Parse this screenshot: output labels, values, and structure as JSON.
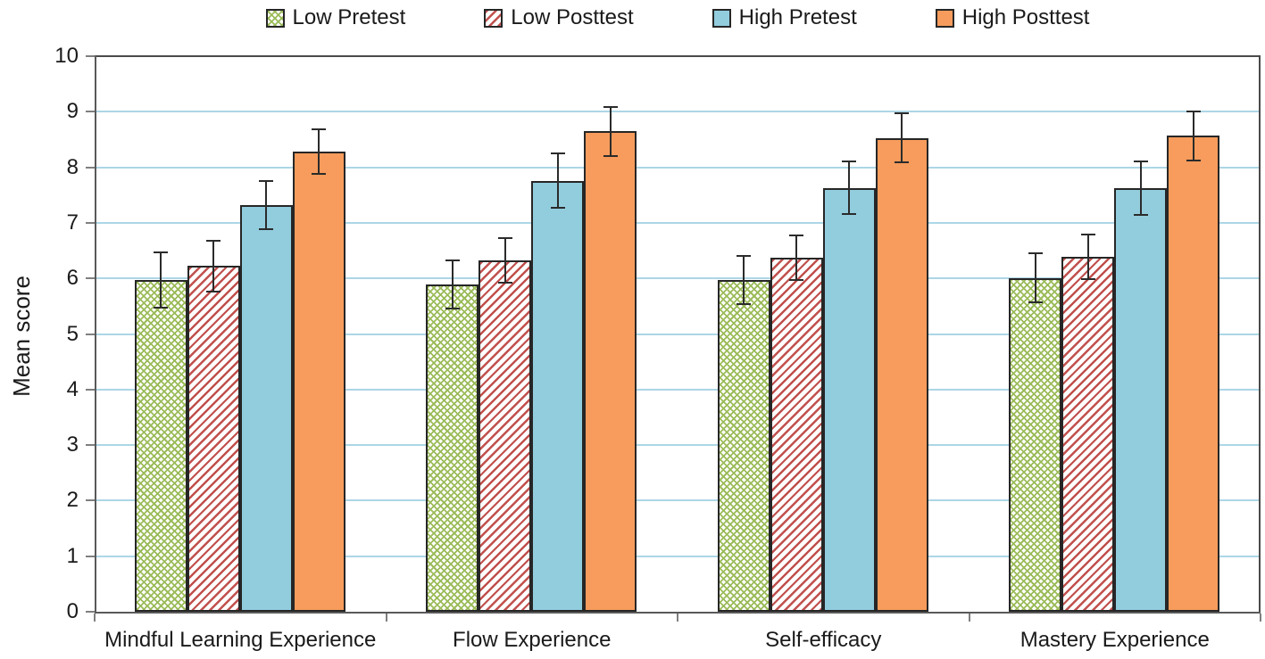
{
  "chart_data": {
    "type": "bar",
    "title": "",
    "xlabel": "",
    "ylabel": "Mean score",
    "ylim": [
      0,
      10
    ],
    "ytick_step": 1,
    "grid": "horizontal",
    "legend_position": "top",
    "categories": [
      "Mindful Learning Experience",
      "Flow Experience",
      "Self-efficacy",
      "Mastery Experience"
    ],
    "series": [
      {
        "name": "Low Pretest",
        "style": "green-crosshatch",
        "color": "#9BBB59",
        "values": [
          5.97,
          5.89,
          5.97,
          6.01
        ],
        "errors": [
          0.5,
          0.43,
          0.44,
          0.44
        ]
      },
      {
        "name": "Low Posttest",
        "style": "red-diagonal",
        "color": "#C0504D",
        "values": [
          6.22,
          6.32,
          6.37,
          6.39
        ],
        "errors": [
          0.45,
          0.4,
          0.4,
          0.4
        ]
      },
      {
        "name": "High Pretest",
        "style": "blue-solid",
        "color": "#92CDDE",
        "values": [
          7.32,
          7.76,
          7.63,
          7.62
        ],
        "errors": [
          0.44,
          0.49,
          0.47,
          0.48
        ]
      },
      {
        "name": "High Posttest",
        "style": "orange-solid",
        "color": "#F79C5C",
        "values": [
          8.28,
          8.65,
          8.53,
          8.57
        ],
        "errors": [
          0.4,
          0.44,
          0.44,
          0.44
        ]
      }
    ],
    "yticks": [
      0,
      1,
      2,
      3,
      4,
      5,
      6,
      7,
      8,
      9,
      10
    ],
    "colors": {
      "gridline": "#ACD6E6",
      "axis": "#595959",
      "bar_border": "#262626",
      "error_bar": "#2B2B2B"
    }
  }
}
